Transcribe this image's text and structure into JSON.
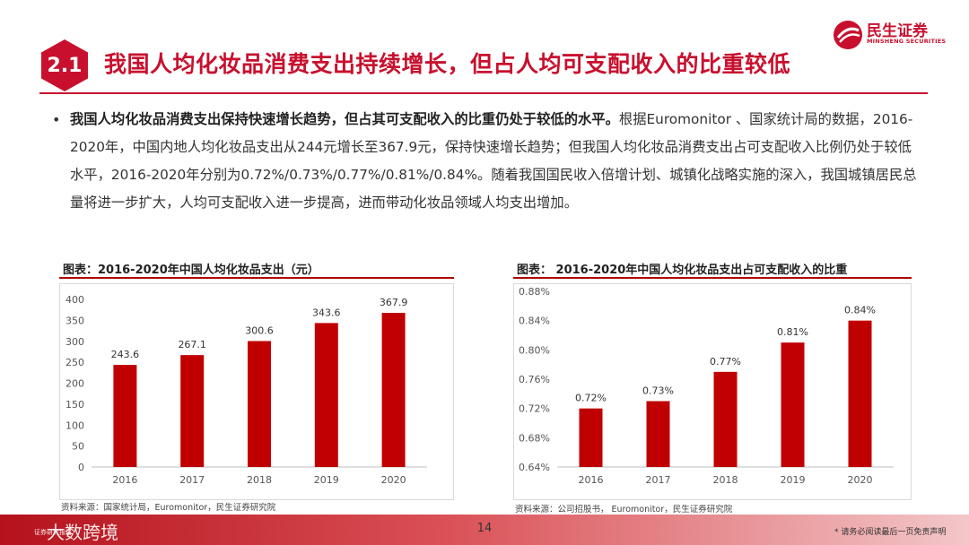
{
  "header": {
    "section_number": "2.1",
    "title": "我国人均化妆品消费支出持续增长，但占人均可支配收入的比重较低",
    "logo_cn": "民生证券",
    "logo_en": "MINSHENG SECURITIES"
  },
  "body": {
    "bullet": "•",
    "bold_lead": "我国人均化妆品消费支出保持快速增长趋势，但占其可支配收入的比重仍处于较低的水平。",
    "text": "根据Euromonitor 、国家统计局的数据，2016-2020年，中国内地人均化妆品支出从244元增长至367.9元，保持快速增长趋势；但我国人均化妆品消费支出占可支配收入比例仍处于较低水平，2016-2020年分别为0.72%/0.73%/0.77%/0.81%/0.84%。随着我国国民收入倍增计划、城镇化战略实施的深入，我国城镇居民总量将进一步扩大，人均可支配收入进一步提高，进而带动化妆品领域人均支出增加。"
  },
  "colors": {
    "brand_red": "#c8102e",
    "bar_red": "#c00000"
  },
  "chart_data": [
    {
      "type": "bar",
      "title": "图表：2016-2020年中国人均化妆品支出（元）",
      "categories": [
        "2016",
        "2017",
        "2018",
        "2019",
        "2020"
      ],
      "values": [
        243.6,
        267.1,
        300.6,
        343.6,
        367.9
      ],
      "value_labels": [
        "243.6",
        "267.1",
        "300.6",
        "343.6",
        "367.9"
      ],
      "ylim": [
        0,
        400
      ],
      "yticks": [
        0,
        50,
        100,
        150,
        200,
        250,
        300,
        350,
        400
      ],
      "ytick_labels": [
        "0",
        "50",
        "100",
        "150",
        "200",
        "250",
        "300",
        "350",
        "400"
      ],
      "source": "资料来源：国家统计局，Euromonitor，民生证券研究院"
    },
    {
      "type": "bar",
      "title": "图表： 2016-2020年中国人均化妆品支出占可支配收入的比重",
      "categories": [
        "2016",
        "2017",
        "2018",
        "2019",
        "2020"
      ],
      "values": [
        0.72,
        0.73,
        0.77,
        0.81,
        0.84
      ],
      "value_labels": [
        "0.72%",
        "0.73%",
        "0.77%",
        "0.81%",
        "0.84%"
      ],
      "ylim": [
        0.64,
        0.88
      ],
      "yticks": [
        0.64,
        0.68,
        0.72,
        0.76,
        0.8,
        0.84,
        0.88
      ],
      "ytick_labels": [
        "0.64%",
        "0.68%",
        "0.72%",
        "0.76%",
        "0.80%",
        "0.84%",
        "0.88%"
      ],
      "source": "资料来源：公司招股书， Euromonitor，民生证券研究院"
    }
  ],
  "footer": {
    "page_number": "14",
    "disclaimer": "* 请务必阅读最后一页免责声明",
    "watermark": "大数跨境",
    "watermark_sub": "证券研究报告"
  }
}
